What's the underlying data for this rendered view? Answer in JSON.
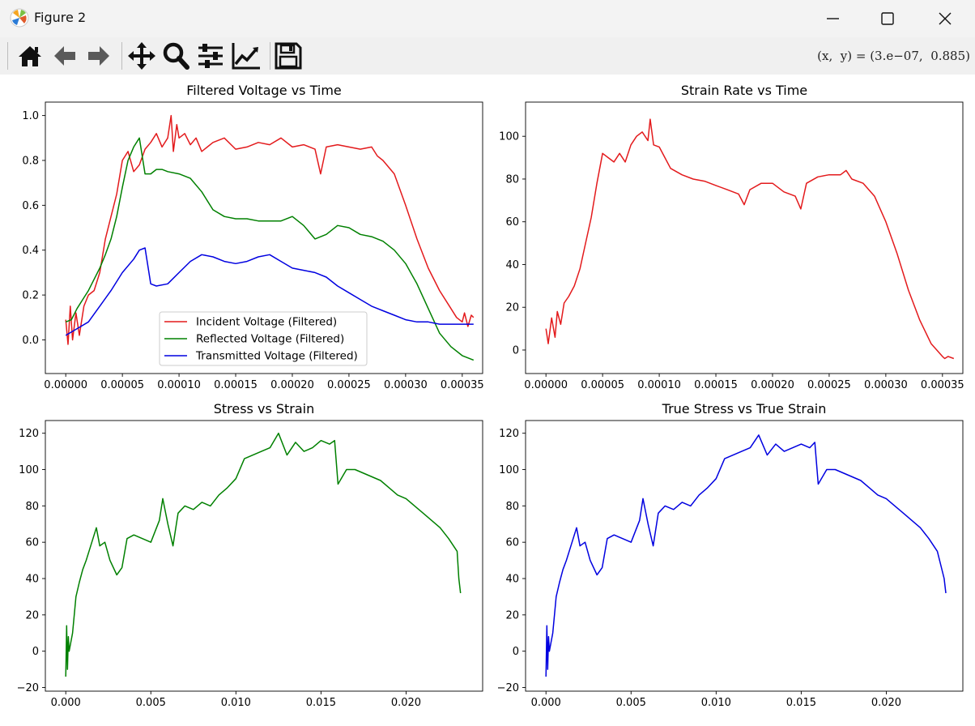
{
  "window": {
    "title": "Figure 2",
    "icon": "matplotlib-logo-icon",
    "buttons": [
      "minimize-icon",
      "maximize-icon",
      "close-icon"
    ]
  },
  "toolbar": {
    "icons": [
      "home-icon",
      "back-arrow-icon",
      "forward-arrow-icon",
      "pan-move-icon",
      "zoom-magnifier-icon",
      "configure-subplots-icon",
      "edit-axis-curves-icon",
      "save-floppy-icon"
    ],
    "coordinates": "(x,  y) = (3.e−07,  0.885)"
  },
  "chart_data": [
    {
      "type": "line",
      "title": "Filtered Voltage vs Time",
      "xlim": [
        -1.8e-05,
        0.000368
      ],
      "ylim": [
        -0.15,
        1.06
      ],
      "xticks": [
        0,
        5e-05,
        0.0001,
        0.00015,
        0.0002,
        0.00025,
        0.0003,
        0.00035
      ],
      "xticklabels": [
        "0.00000",
        "0.00005",
        "0.00010",
        "0.00015",
        "0.00020",
        "0.00025",
        "0.00030",
        "0.00035"
      ],
      "yticks": [
        0,
        0.2,
        0.4,
        0.6,
        0.8,
        1.0
      ],
      "yticklabels": [
        "0.0",
        "0.2",
        "0.4",
        "0.6",
        "0.8",
        "1.0"
      ],
      "legend": "lower-center",
      "series": [
        {
          "name": "Incident Voltage (Filtered)",
          "color": "#e31a1c",
          "x": [
            0,
            2e-06,
            4e-06,
            6e-06,
            9e-06,
            1.2e-05,
            1.6e-05,
            2e-05,
            2.5e-05,
            3e-05,
            3.5e-05,
            4e-05,
            4.5e-05,
            5e-05,
            5.5e-05,
            6e-05,
            6.5e-05,
            7e-05,
            7.5e-05,
            8e-05,
            8.5e-05,
            9e-05,
            9.3e-05,
            9.5e-05,
            9.8e-05,
            0.0001,
            0.000105,
            0.00011,
            0.000115,
            0.00012,
            0.00013,
            0.00014,
            0.00015,
            0.00016,
            0.00017,
            0.00018,
            0.00019,
            0.0002,
            0.00021,
            0.00022,
            0.000225,
            0.00023,
            0.00024,
            0.00025,
            0.00026,
            0.00027,
            0.000275,
            0.00028,
            0.00029,
            0.0003,
            0.00031,
            0.00032,
            0.00033,
            0.00034,
            0.000345,
            0.00035,
            0.000352,
            0.000355,
            0.000358,
            0.00036
          ],
          "y": [
            0.09,
            -0.02,
            0.15,
            0.0,
            0.12,
            0.02,
            0.15,
            0.2,
            0.22,
            0.3,
            0.45,
            0.55,
            0.65,
            0.8,
            0.84,
            0.75,
            0.78,
            0.85,
            0.88,
            0.92,
            0.86,
            0.9,
            1.0,
            0.84,
            0.96,
            0.9,
            0.92,
            0.87,
            0.9,
            0.84,
            0.88,
            0.9,
            0.85,
            0.86,
            0.88,
            0.87,
            0.9,
            0.86,
            0.87,
            0.85,
            0.74,
            0.86,
            0.87,
            0.86,
            0.85,
            0.86,
            0.82,
            0.8,
            0.74,
            0.6,
            0.45,
            0.32,
            0.22,
            0.14,
            0.1,
            0.08,
            0.12,
            0.06,
            0.11,
            0.1
          ]
        },
        {
          "name": "Reflected Voltage (Filtered)",
          "color": "#008000",
          "x": [
            0,
            5e-06,
            1e-05,
            1.5e-05,
            2e-05,
            2.5e-05,
            3e-05,
            3.5e-05,
            4e-05,
            4.5e-05,
            5e-05,
            5.5e-05,
            6e-05,
            6.5e-05,
            7e-05,
            7.5e-05,
            8e-05,
            8.5e-05,
            9e-05,
            0.0001,
            0.00011,
            0.00012,
            0.00013,
            0.00014,
            0.00015,
            0.00016,
            0.00017,
            0.00018,
            0.00019,
            0.0002,
            0.00021,
            0.00022,
            0.00023,
            0.00024,
            0.00025,
            0.00026,
            0.00027,
            0.00028,
            0.00029,
            0.0003,
            0.00031,
            0.00032,
            0.00033,
            0.00034,
            0.00035,
            0.00036
          ],
          "y": [
            0.08,
            0.09,
            0.14,
            0.18,
            0.22,
            0.27,
            0.32,
            0.38,
            0.45,
            0.55,
            0.68,
            0.8,
            0.86,
            0.9,
            0.74,
            0.74,
            0.76,
            0.76,
            0.75,
            0.74,
            0.72,
            0.66,
            0.58,
            0.55,
            0.54,
            0.54,
            0.53,
            0.53,
            0.53,
            0.55,
            0.51,
            0.45,
            0.47,
            0.51,
            0.5,
            0.47,
            0.46,
            0.44,
            0.4,
            0.34,
            0.25,
            0.14,
            0.03,
            -0.03,
            -0.07,
            -0.09
          ]
        },
        {
          "name": "Transmitted Voltage (Filtered)",
          "color": "#0000e0",
          "x": [
            0,
            1e-05,
            2e-05,
            3e-05,
            4e-05,
            5e-05,
            6e-05,
            6.5e-05,
            7e-05,
            7.5e-05,
            8e-05,
            9e-05,
            0.0001,
            0.00011,
            0.00012,
            0.00013,
            0.00014,
            0.00015,
            0.00016,
            0.00017,
            0.00018,
            0.00019,
            0.0002,
            0.00021,
            0.00022,
            0.00023,
            0.00024,
            0.00025,
            0.00026,
            0.00027,
            0.00028,
            0.00029,
            0.0003,
            0.00031,
            0.00032,
            0.00033,
            0.00034,
            0.00035,
            0.00036
          ],
          "y": [
            0.02,
            0.05,
            0.08,
            0.15,
            0.22,
            0.3,
            0.36,
            0.4,
            0.41,
            0.25,
            0.24,
            0.25,
            0.3,
            0.35,
            0.38,
            0.37,
            0.35,
            0.34,
            0.35,
            0.37,
            0.38,
            0.35,
            0.32,
            0.31,
            0.3,
            0.28,
            0.24,
            0.21,
            0.18,
            0.15,
            0.13,
            0.11,
            0.09,
            0.08,
            0.08,
            0.07,
            0.07,
            0.07,
            0.07
          ]
        }
      ]
    },
    {
      "type": "line",
      "title": "Strain Rate vs Time",
      "xlim": [
        -1.8e-05,
        0.000368
      ],
      "ylim": [
        -11,
        116
      ],
      "xticks": [
        0,
        5e-05,
        0.0001,
        0.00015,
        0.0002,
        0.00025,
        0.0003,
        0.00035
      ],
      "xticklabels": [
        "0.00000",
        "0.00005",
        "0.00010",
        "0.00015",
        "0.00020",
        "0.00025",
        "0.00030",
        "0.00035"
      ],
      "yticks": [
        0,
        20,
        40,
        60,
        80,
        100
      ],
      "yticklabels": [
        "0",
        "20",
        "40",
        "60",
        "80",
        "100"
      ],
      "series": [
        {
          "color": "#e31a1c",
          "x": [
            0,
            2e-06,
            5e-06,
            8e-06,
            1e-05,
            1.3e-05,
            1.6e-05,
            2e-05,
            2.5e-05,
            3e-05,
            3.5e-05,
            4e-05,
            4.5e-05,
            5e-05,
            5.5e-05,
            6e-05,
            6.5e-05,
            7e-05,
            7.5e-05,
            8e-05,
            8.5e-05,
            9e-05,
            9.2e-05,
            9.5e-05,
            0.0001,
            0.000105,
            0.00011,
            0.00012,
            0.00013,
            0.00014,
            0.00015,
            0.00016,
            0.00017,
            0.000175,
            0.00018,
            0.00019,
            0.0002,
            0.00021,
            0.00022,
            0.000225,
            0.00023,
            0.00024,
            0.00025,
            0.00026,
            0.000265,
            0.00027,
            0.00028,
            0.00029,
            0.0003,
            0.00031,
            0.00032,
            0.00033,
            0.00034,
            0.00035,
            0.000352,
            0.000355,
            0.00036
          ],
          "y": [
            10,
            3,
            15,
            6,
            18,
            12,
            22,
            25,
            30,
            38,
            50,
            62,
            78,
            92,
            90,
            88,
            92,
            88,
            96,
            100,
            102,
            98,
            108,
            96,
            95,
            90,
            85,
            82,
            80,
            79,
            77,
            75,
            73,
            68,
            75,
            78,
            78,
            74,
            72,
            66,
            78,
            81,
            82,
            82,
            84,
            80,
            78,
            72,
            60,
            45,
            28,
            14,
            3,
            -3,
            -4,
            -3,
            -4
          ]
        }
      ]
    },
    {
      "type": "line",
      "title": "Stress vs Strain",
      "xlim": [
        -0.0012,
        0.0245
      ],
      "ylim": [
        -22,
        127
      ],
      "xticks": [
        0,
        0.005,
        0.01,
        0.015,
        0.02
      ],
      "xticklabels": [
        "0.000",
        "0.005",
        "0.010",
        "0.015",
        "0.020"
      ],
      "yticks": [
        -20,
        0,
        20,
        40,
        60,
        80,
        100,
        120
      ],
      "yticklabels": [
        "−20",
        "0",
        "20",
        "40",
        "60",
        "80",
        "100",
        "120"
      ],
      "series": [
        {
          "color": "#008000",
          "x": [
            0,
            5e-05,
            0.0001,
            0.00015,
            0.0002,
            0.0003,
            0.0004,
            0.0005,
            0.0006,
            0.0008,
            0.001,
            0.0012,
            0.0014,
            0.0016,
            0.0018,
            0.002,
            0.0023,
            0.0026,
            0.003,
            0.0033,
            0.0036,
            0.004,
            0.0045,
            0.005,
            0.0055,
            0.0057,
            0.006,
            0.0063,
            0.0066,
            0.007,
            0.0075,
            0.008,
            0.0085,
            0.009,
            0.0095,
            0.01,
            0.0105,
            0.011,
            0.0115,
            0.012,
            0.0125,
            0.013,
            0.0135,
            0.014,
            0.0145,
            0.015,
            0.0155,
            0.0158,
            0.016,
            0.0165,
            0.017,
            0.0175,
            0.018,
            0.0185,
            0.019,
            0.0195,
            0.02,
            0.0205,
            0.021,
            0.0215,
            0.022,
            0.0225,
            0.023,
            0.0231,
            0.0232
          ],
          "y": [
            -14,
            14,
            -10,
            8,
            0,
            5,
            10,
            20,
            30,
            38,
            45,
            50,
            56,
            62,
            68,
            58,
            60,
            50,
            42,
            46,
            62,
            64,
            62,
            60,
            72,
            84,
            70,
            58,
            76,
            80,
            78,
            82,
            80,
            86,
            90,
            95,
            106,
            108,
            110,
            112,
            120,
            108,
            115,
            110,
            112,
            116,
            114,
            116,
            92,
            100,
            100,
            98,
            96,
            94,
            90,
            86,
            84,
            80,
            76,
            72,
            68,
            62,
            55,
            40,
            32
          ]
        }
      ]
    },
    {
      "type": "line",
      "title": "True Stress vs True Strain",
      "xlim": [
        -0.0012,
        0.0245
      ],
      "ylim": [
        -22,
        127
      ],
      "xticks": [
        0,
        0.005,
        0.01,
        0.015,
        0.02
      ],
      "xticklabels": [
        "0.000",
        "0.005",
        "0.010",
        "0.015",
        "0.020"
      ],
      "yticks": [
        -20,
        0,
        20,
        40,
        60,
        80,
        100,
        120
      ],
      "yticklabels": [
        "−20",
        "0",
        "20",
        "40",
        "60",
        "80",
        "100",
        "120"
      ],
      "series": [
        {
          "color": "#0000e0",
          "x": [
            0,
            5e-05,
            0.0001,
            0.00015,
            0.0002,
            0.0003,
            0.0004,
            0.0005,
            0.0006,
            0.0008,
            0.001,
            0.0012,
            0.0014,
            0.0016,
            0.0018,
            0.002,
            0.0023,
            0.0026,
            0.003,
            0.0033,
            0.0036,
            0.004,
            0.0045,
            0.005,
            0.0055,
            0.0057,
            0.006,
            0.0063,
            0.0066,
            0.007,
            0.0075,
            0.008,
            0.0085,
            0.009,
            0.0095,
            0.01,
            0.0105,
            0.011,
            0.0115,
            0.012,
            0.0125,
            0.013,
            0.0135,
            0.014,
            0.0145,
            0.015,
            0.0155,
            0.0158,
            0.016,
            0.0165,
            0.017,
            0.0175,
            0.018,
            0.0185,
            0.019,
            0.0195,
            0.02,
            0.0205,
            0.021,
            0.0215,
            0.022,
            0.0225,
            0.023,
            0.0234,
            0.0235
          ],
          "y": [
            -14,
            14,
            -10,
            8,
            0,
            5,
            10,
            20,
            30,
            38,
            45,
            50,
            56,
            62,
            68,
            58,
            60,
            50,
            42,
            46,
            62,
            64,
            62,
            60,
            72,
            84,
            70,
            58,
            76,
            80,
            78,
            82,
            80,
            86,
            90,
            95,
            106,
            108,
            110,
            112,
            119,
            108,
            114,
            110,
            112,
            114,
            112,
            115,
            92,
            100,
            100,
            98,
            96,
            94,
            90,
            86,
            84,
            80,
            76,
            72,
            68,
            62,
            55,
            40,
            32
          ]
        }
      ]
    }
  ]
}
